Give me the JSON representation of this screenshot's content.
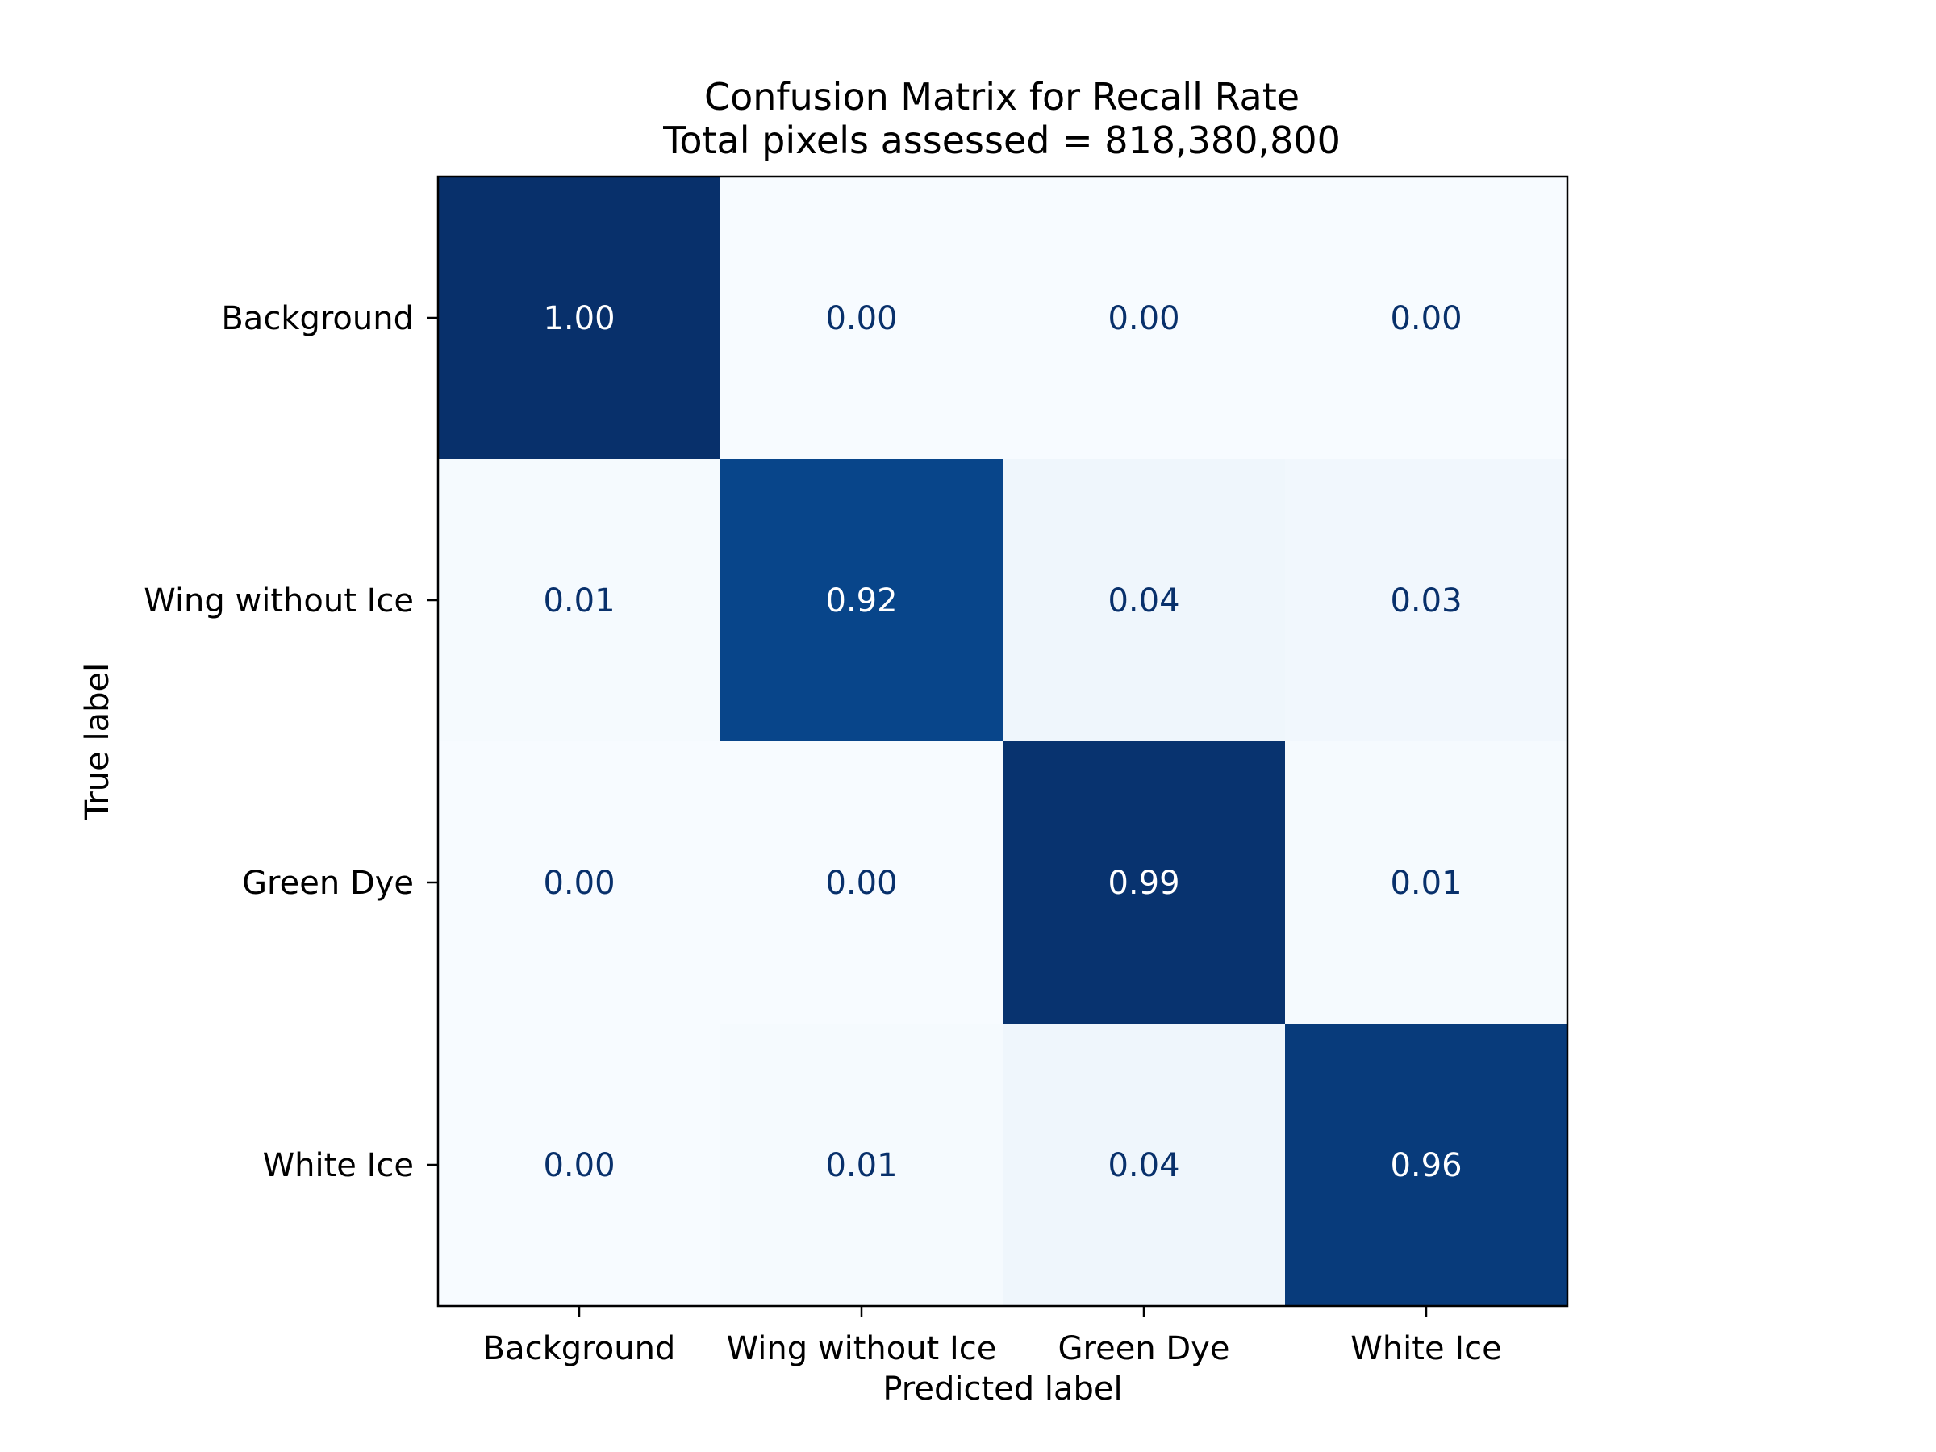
{
  "chart_data": {
    "type": "heatmap",
    "title": [
      "Confusion Matrix for Recall Rate",
      "Total pixels assessed = 818,380,800"
    ],
    "xlabel": "Predicted label",
    "ylabel": "True label",
    "x_categories": [
      "Background",
      "Wing without Ice",
      "Green Dye",
      "White Ice"
    ],
    "y_categories": [
      "Background",
      "Wing without Ice",
      "Green Dye",
      "White Ice"
    ],
    "values": [
      [
        1.0,
        0.0,
        0.0,
        0.0
      ],
      [
        0.01,
        0.92,
        0.04,
        0.03
      ],
      [
        0.0,
        0.0,
        0.99,
        0.01
      ],
      [
        0.0,
        0.01,
        0.04,
        0.96
      ]
    ],
    "value_format": "0.00",
    "colormap": "Blues",
    "vmin": 0,
    "vmax": 1
  }
}
